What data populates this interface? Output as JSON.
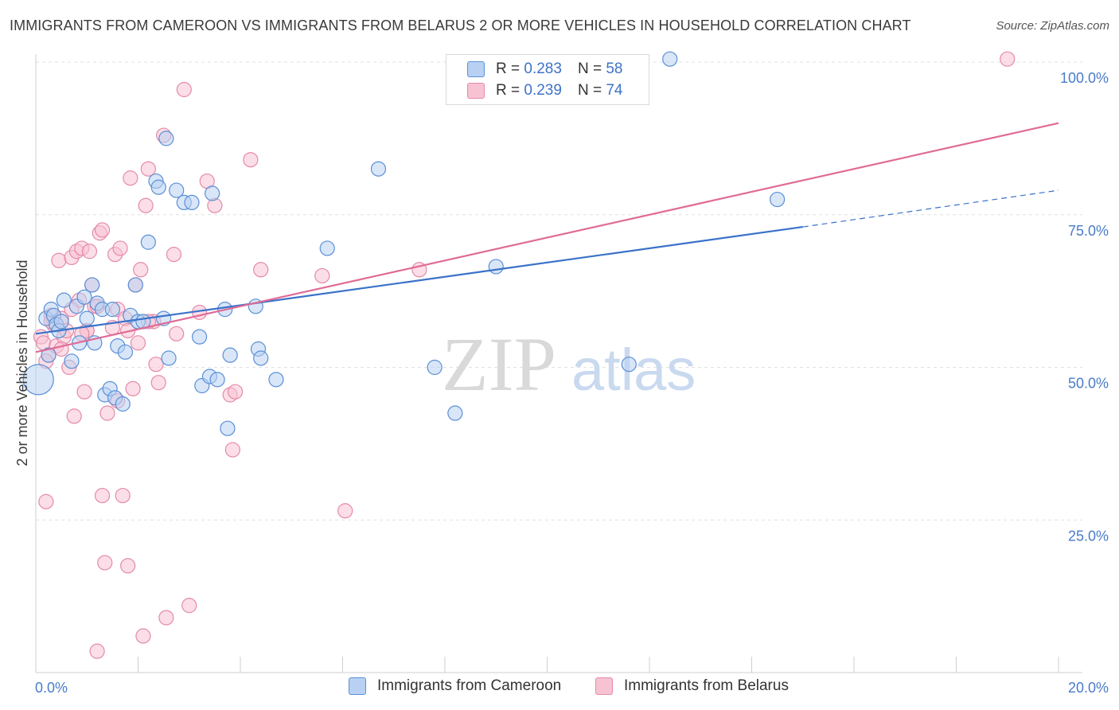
{
  "title": "IMMIGRANTS FROM CAMEROON VS IMMIGRANTS FROM BELARUS 2 OR MORE VEHICLES IN HOUSEHOLD CORRELATION CHART",
  "source": "Source: ZipAtlas.com",
  "watermark": {
    "zip": "ZIP",
    "atlas": "atlas"
  },
  "legend_top": [
    {
      "r_label": "R =",
      "r_value": "0.283",
      "n_label": "N =",
      "n_value": "58"
    },
    {
      "r_label": "R =",
      "r_value": "0.239",
      "n_label": "N =",
      "n_value": "74"
    }
  ],
  "colors": {
    "cameroon_fill": "#b8d1f2",
    "cameroon_stroke": "#5b8fd6",
    "cameroon_line": "#3a72c9",
    "belarus_fill": "#f7c3d3",
    "belarus_stroke": "#e58aa8",
    "belarus_line": "#e06b96",
    "grid": "#e0e0e0",
    "accent_text": "#4a7cc9"
  },
  "chart_data": {
    "type": "scatter",
    "title": "IMMIGRANTS FROM CAMEROON VS IMMIGRANTS FROM BELARUS 2 OR MORE VEHICLES IN HOUSEHOLD CORRELATION CHART",
    "xlabel": "",
    "ylabel": "2 or more Vehicles in Household",
    "xlim": [
      0,
      20
    ],
    "ylim": [
      0,
      100
    ],
    "x_tick_labels": [
      "0.0%",
      "20.0%"
    ],
    "y_tick_labels": [
      "100.0%",
      "75.0%",
      "50.0%",
      "25.0%"
    ],
    "y_tick_values": [
      100,
      75,
      50,
      25
    ],
    "series": [
      {
        "name": "Immigrants from Cameroon",
        "points": [
          [
            0.05,
            48.0
          ],
          [
            0.2,
            58.0
          ],
          [
            0.3,
            59.5
          ],
          [
            0.35,
            58.5
          ],
          [
            0.4,
            57.0
          ],
          [
            0.45,
            56.0
          ],
          [
            0.5,
            57.5
          ],
          [
            0.55,
            61.0
          ],
          [
            0.7,
            51.0
          ],
          [
            0.8,
            60.0
          ],
          [
            0.85,
            54.0
          ],
          [
            0.95,
            61.5
          ],
          [
            1.0,
            58.0
          ],
          [
            1.1,
            63.5
          ],
          [
            1.15,
            54.0
          ],
          [
            1.2,
            60.5
          ],
          [
            1.3,
            59.5
          ],
          [
            1.35,
            45.5
          ],
          [
            1.45,
            46.5
          ],
          [
            1.5,
            59.5
          ],
          [
            1.55,
            45.0
          ],
          [
            1.6,
            53.5
          ],
          [
            1.7,
            44.0
          ],
          [
            1.75,
            52.5
          ],
          [
            1.85,
            58.5
          ],
          [
            1.95,
            63.5
          ],
          [
            2.0,
            57.5
          ],
          [
            2.1,
            57.5
          ],
          [
            2.2,
            70.5
          ],
          [
            2.35,
            80.5
          ],
          [
            2.4,
            79.5
          ],
          [
            2.5,
            58.0
          ],
          [
            2.55,
            87.5
          ],
          [
            2.6,
            51.5
          ],
          [
            2.75,
            79.0
          ],
          [
            2.9,
            77.0
          ],
          [
            3.05,
            77.0
          ],
          [
            3.2,
            55.0
          ],
          [
            3.25,
            47.0
          ],
          [
            3.4,
            48.5
          ],
          [
            3.45,
            78.5
          ],
          [
            3.55,
            48.0
          ],
          [
            3.7,
            59.5
          ],
          [
            3.75,
            40.0
          ],
          [
            3.8,
            52.0
          ],
          [
            4.3,
            60.0
          ],
          [
            4.35,
            53.0
          ],
          [
            4.4,
            51.5
          ],
          [
            4.7,
            48.0
          ],
          [
            5.7,
            69.5
          ],
          [
            6.7,
            82.5
          ],
          [
            7.8,
            50.0
          ],
          [
            8.2,
            42.5
          ],
          [
            9.0,
            66.5
          ],
          [
            11.6,
            50.5
          ],
          [
            12.4,
            100.5
          ],
          [
            14.5,
            77.5
          ],
          [
            0.25,
            52.0
          ]
        ]
      },
      {
        "name": "Immigrants from Belarus",
        "points": [
          [
            0.1,
            55.0
          ],
          [
            0.15,
            54.0
          ],
          [
            0.2,
            28.0
          ],
          [
            0.25,
            52.0
          ],
          [
            0.3,
            58.5
          ],
          [
            0.35,
            57.0
          ],
          [
            0.4,
            53.5
          ],
          [
            0.45,
            67.5
          ],
          [
            0.5,
            58.0
          ],
          [
            0.55,
            55.0
          ],
          [
            0.6,
            56.0
          ],
          [
            0.65,
            50.0
          ],
          [
            0.7,
            68.0
          ],
          [
            0.75,
            42.0
          ],
          [
            0.8,
            69.0
          ],
          [
            0.85,
            61.0
          ],
          [
            0.9,
            69.5
          ],
          [
            0.95,
            46.0
          ],
          [
            1.0,
            56.0
          ],
          [
            1.05,
            69.0
          ],
          [
            1.1,
            63.5
          ],
          [
            1.15,
            60.0
          ],
          [
            1.2,
            3.5
          ],
          [
            1.25,
            72.0
          ],
          [
            1.3,
            72.5
          ],
          [
            1.3,
            29.0
          ],
          [
            1.35,
            18.0
          ],
          [
            1.4,
            42.5
          ],
          [
            1.5,
            56.5
          ],
          [
            1.55,
            68.5
          ],
          [
            1.6,
            59.5
          ],
          [
            1.65,
            69.5
          ],
          [
            1.7,
            29.0
          ],
          [
            1.75,
            58.0
          ],
          [
            1.8,
            17.5
          ],
          [
            1.85,
            81.0
          ],
          [
            1.9,
            46.5
          ],
          [
            1.95,
            63.5
          ],
          [
            2.0,
            54.0
          ],
          [
            2.05,
            66.0
          ],
          [
            2.1,
            6.0
          ],
          [
            2.15,
            76.5
          ],
          [
            2.2,
            82.5
          ],
          [
            2.3,
            57.5
          ],
          [
            2.35,
            50.5
          ],
          [
            2.4,
            47.5
          ],
          [
            2.5,
            88.0
          ],
          [
            2.55,
            9.0
          ],
          [
            2.7,
            68.5
          ],
          [
            2.75,
            55.5
          ],
          [
            2.9,
            95.5
          ],
          [
            3.0,
            11.0
          ],
          [
            3.2,
            59.0
          ],
          [
            3.35,
            80.5
          ],
          [
            3.5,
            76.5
          ],
          [
            3.8,
            45.5
          ],
          [
            3.85,
            36.5
          ],
          [
            3.9,
            46.0
          ],
          [
            4.2,
            84.0
          ],
          [
            4.4,
            66.0
          ],
          [
            5.6,
            65.0
          ],
          [
            6.05,
            26.5
          ],
          [
            7.5,
            66.0
          ],
          [
            19.0,
            100.5
          ],
          [
            0.2,
            51.0
          ],
          [
            0.3,
            57.5
          ],
          [
            0.5,
            53.0
          ],
          [
            0.7,
            59.5
          ],
          [
            1.0,
            56.0
          ],
          [
            1.2,
            60.0
          ],
          [
            1.6,
            44.5
          ],
          [
            2.2,
            57.5
          ],
          [
            0.9,
            55.5
          ],
          [
            1.8,
            56.0
          ]
        ]
      }
    ],
    "trend_lines": [
      {
        "series": "Immigrants from Cameroon",
        "x0": 0.0,
        "y0": 55.5,
        "x1": 15.0,
        "y1": 73.0,
        "x_dash_end": 20.0,
        "y_dash_end": 79.0
      },
      {
        "series": "Immigrants from Belarus",
        "x0": 0.0,
        "y0": 52.5,
        "x1": 20.0,
        "y1": 90.0
      }
    ],
    "legend": [
      "Immigrants from Cameroon",
      "Immigrants from Belarus"
    ]
  }
}
